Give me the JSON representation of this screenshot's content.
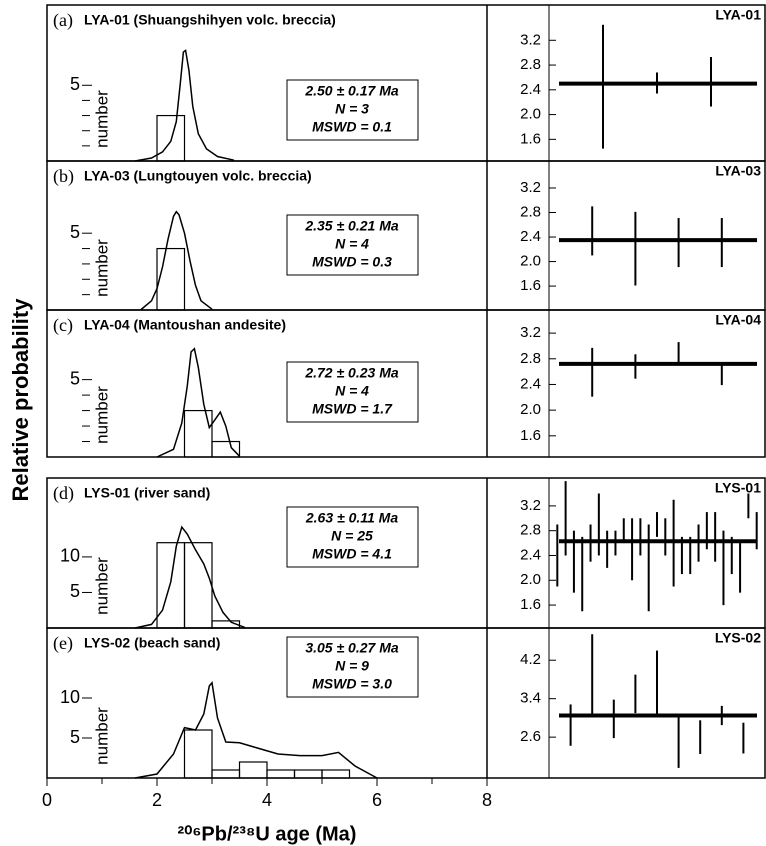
{
  "y_label": "Relative probability",
  "chart_data": [
    {
      "type": "histogram",
      "letter": "(a)",
      "title": "LYA-01 (Shuangshihyen volc. breccia)",
      "y_label": "number",
      "xlim": [
        0,
        8
      ],
      "ylim": [
        0,
        10.3
      ],
      "yticks": [
        5
      ],
      "minor_yticks": [
        1,
        2,
        3,
        4
      ],
      "bins": [
        2,
        2.5
      ],
      "counts": [
        3
      ],
      "curve": {
        "x": [
          1.6,
          1.9,
          2.1,
          2.25,
          2.35,
          2.42,
          2.48,
          2.52,
          2.58,
          2.65,
          2.75,
          2.9,
          3.1,
          3.4
        ],
        "y": [
          0,
          0.2,
          0.6,
          1.3,
          2.6,
          5,
          7.2,
          7.3,
          6,
          3.6,
          1.8,
          0.8,
          0.3,
          0.05
        ]
      },
      "result": [
        "2.50 ± 0.17 Ma",
        "N = 3",
        "MSWD = 0.1"
      ],
      "ages": {
        "type": "error_bar",
        "label": "LYA-01",
        "ylim": [
          1.25,
          3.77
        ],
        "yticks": [
          1.6,
          {
            "value": 2,
            "label": "2.0"
          },
          2.4,
          2.8,
          3.2
        ],
        "values": [
          2.45,
          2.51,
          2.53
        ],
        "errors": [
          1.0,
          0.17,
          0.4
        ],
        "mean": 2.5
      }
    },
    {
      "type": "histogram",
      "letter": "(b)",
      "title": "LYA-03 (Lungtouyen volc. breccia)",
      "y_label": "number",
      "xlim": [
        0,
        8
      ],
      "ylim": [
        0,
        9.7
      ],
      "yticks": [
        5
      ],
      "minor_yticks": [
        1,
        2,
        3,
        4
      ],
      "bins": [
        2,
        2.5
      ],
      "counts": [
        4
      ],
      "curve": {
        "x": [
          1.7,
          1.9,
          2.0,
          2.1,
          2.2,
          2.3,
          2.35,
          2.4,
          2.5,
          2.6,
          2.7,
          2.8,
          3.0
        ],
        "y": [
          0,
          0.6,
          1.4,
          2.8,
          4.6,
          6.1,
          6.4,
          6.2,
          5.0,
          3.2,
          1.6,
          0.6,
          0.05
        ]
      },
      "result": [
        "2.35 ± 0.21 Ma",
        "N = 4",
        "MSWD = 0.3"
      ],
      "ages": {
        "type": "error_bar",
        "label": "LYA-03",
        "ylim": [
          1.21,
          3.64
        ],
        "yticks": [
          1.6,
          {
            "value": 2,
            "label": "2.0"
          },
          2.4,
          2.8,
          3.2
        ],
        "values": [
          2.5,
          2.21,
          2.31,
          2.31
        ],
        "errors": [
          0.4,
          0.6,
          0.4,
          0.4
        ],
        "mean": 2.35
      }
    },
    {
      "type": "histogram",
      "letter": "(c)",
      "title": "LYA-04 (Mantoushan andesite)",
      "y_label": "number",
      "xlim": [
        0,
        8
      ],
      "ylim": [
        0,
        9.5
      ],
      "yticks": [
        5
      ],
      "minor_yticks": [
        1,
        2,
        3,
        4
      ],
      "bins": [
        2.5,
        3,
        3.5
      ],
      "counts": [
        3,
        1
      ],
      "curve": {
        "x": [
          2.0,
          2.3,
          2.45,
          2.55,
          2.62,
          2.68,
          2.75,
          2.85,
          2.95,
          3.05,
          3.15,
          3.25,
          3.35,
          3.5
        ],
        "y": [
          0,
          0.5,
          2.2,
          4.6,
          6.8,
          7.0,
          5.8,
          3.4,
          1.9,
          2.4,
          2.9,
          2.0,
          0.6,
          0.05
        ]
      },
      "result": [
        "2.72 ± 0.23 Ma",
        "N = 4",
        "MSWD = 1.7"
      ],
      "ages": {
        "type": "error_bar",
        "label": "LYA-04",
        "ylim": [
          1.27,
          3.56
        ],
        "yticks": [
          1.6,
          {
            "value": 2,
            "label": "2.0"
          },
          2.4,
          2.8,
          3.2
        ],
        "values": [
          2.59,
          2.68,
          2.88,
          2.57
        ],
        "errors": [
          0.38,
          0.19,
          0.18,
          0.18
        ],
        "mean": 2.72
      }
    },
    {
      "type": "histogram",
      "letter": "(d)",
      "title": "LYS-01 (river sand)",
      "y_label": "number",
      "xlim": [
        0,
        8
      ],
      "ylim": [
        0,
        21.1
      ],
      "yticks": [
        5,
        10
      ],
      "minor_yticks": [],
      "bins": [
        2,
        2.5,
        3,
        3.5
      ],
      "counts": [
        12,
        12,
        1
      ],
      "curve": {
        "x": [
          1.6,
          1.9,
          2.1,
          2.25,
          2.35,
          2.45,
          2.55,
          2.7,
          2.85,
          2.95,
          3.05,
          3.2,
          3.35,
          3.6
        ],
        "y": [
          0,
          0.5,
          2.5,
          6.5,
          11.5,
          14.2,
          13.2,
          11,
          9,
          7,
          4.5,
          2.2,
          0.8,
          0.05
        ]
      },
      "result": [
        "2.63 ± 0.11 Ma",
        "N = 25",
        "MSWD = 4.1"
      ],
      "ages": {
        "type": "error_bar",
        "label": "LYS-01",
        "ylim": [
          1.23,
          3.65
        ],
        "yticks": [
          1.6,
          {
            "value": 2,
            "label": "2.0"
          },
          2.4,
          2.8,
          3.2
        ],
        "values": [
          2.4,
          3.0,
          2.3,
          2.1,
          2.6,
          2.9,
          2.5,
          2.6,
          2.8,
          2.5,
          2.7,
          2.2,
          2.9,
          2.7,
          2.6,
          2.4,
          2.4,
          2.6,
          2.8,
          2.7,
          2.2,
          2.4,
          2.2,
          3.2,
          2.8
        ],
        "errors": [
          0.5,
          0.6,
          0.5,
          0.6,
          0.3,
          0.5,
          0.3,
          0.2,
          0.2,
          0.5,
          0.3,
          0.7,
          0.2,
          0.3,
          0.7,
          0.3,
          0.3,
          0.3,
          0.3,
          0.4,
          0.6,
          0.3,
          0.4,
          0.2,
          0.3
        ],
        "mean": 2.63
      }
    },
    {
      "type": "histogram",
      "letter": "(e)",
      "title": "LYS-02 (beach sand)",
      "y_label": "number",
      "xlim": [
        0,
        8
      ],
      "ylim": [
        0,
        18.75
      ],
      "yticks": [
        5,
        10
      ],
      "minor_yticks": [],
      "xticks": [
        0,
        2,
        4,
        6,
        8
      ],
      "minor_xticks": [
        1,
        3,
        5,
        7
      ],
      "x_label": "²⁰⁶Pb/²³⁸U age (Ma)",
      "bins": [
        2.5,
        3,
        3.5,
        4,
        4.5,
        5,
        5.5
      ],
      "counts": [
        6,
        1,
        2,
        1,
        1,
        1
      ],
      "curve": {
        "x": [
          1.6,
          2.0,
          2.3,
          2.5,
          2.7,
          2.85,
          2.95,
          3.0,
          3.1,
          3.25,
          3.5,
          3.8,
          4.2,
          4.6,
          5.0,
          5.3,
          5.6,
          6.0
        ],
        "y": [
          0,
          0.5,
          3,
          6.3,
          6,
          8,
          11.5,
          11.9,
          7.5,
          4.5,
          4.4,
          3.8,
          3,
          2.8,
          2.8,
          3.2,
          1.5,
          0
        ]
      },
      "result": [
        "3.05 ± 0.27 Ma",
        "N = 9",
        "MSWD = 3.0"
      ],
      "ages": {
        "type": "error_bar",
        "label": "LYS-02",
        "ylim": [
          1.75,
          4.87
        ],
        "yticks": [
          2.6,
          3.4,
          4.2
        ],
        "values": [
          2.85,
          3.88,
          2.98,
          3.5,
          3.72,
          2.5,
          2.6,
          3.05,
          2.58
        ],
        "errors": [
          0.43,
          0.86,
          0.4,
          0.4,
          0.68,
          0.54,
          0.35,
          0.2,
          0.32
        ],
        "mean": 3.05
      }
    }
  ]
}
